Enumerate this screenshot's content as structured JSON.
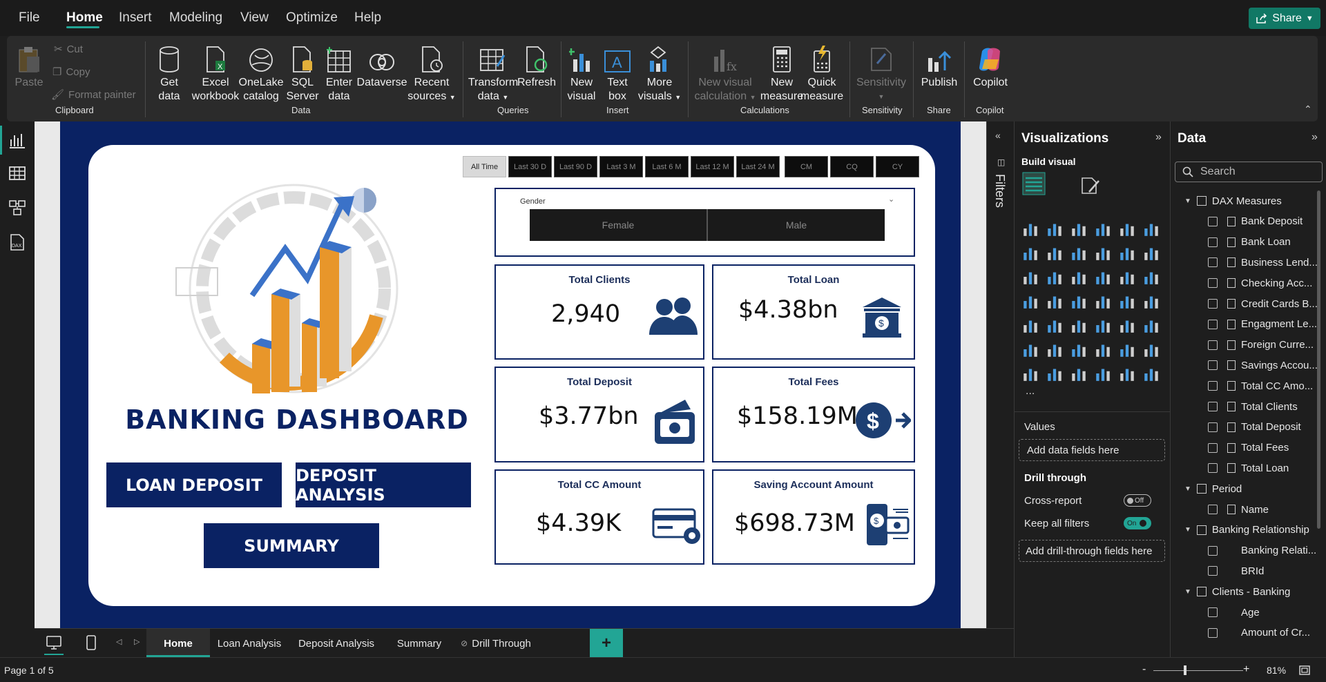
{
  "menu": {
    "file": "File",
    "home": "Home",
    "insert": "Insert",
    "modeling": "Modeling",
    "view": "View",
    "optimize": "Optimize",
    "help": "Help",
    "share": "Share"
  },
  "ribbon": {
    "paste": "Paste",
    "cut": "Cut",
    "copy": "Copy",
    "format_painter": "Format painter",
    "clipboard": "Clipboard",
    "get_data_1": "Get",
    "get_data_2": "data",
    "excel_1": "Excel",
    "excel_2": "workbook",
    "onelake_1": "OneLake",
    "onelake_2": "catalog",
    "sql_1": "SQL",
    "sql_2": "Server",
    "enter_1": "Enter",
    "enter_2": "data",
    "dataverse": "Dataverse",
    "recent_1": "Recent",
    "recent_2": "sources",
    "data_group": "Data",
    "transform_1": "Transform",
    "transform_2": "data",
    "refresh": "Refresh",
    "queries": "Queries",
    "new_visual_1": "New",
    "new_visual_2": "visual",
    "text_box_1": "Text",
    "text_box_2": "box",
    "more_visuals_1": "More",
    "more_visuals_2": "visuals",
    "insert_group": "Insert",
    "new_vis_calc_1": "New visual",
    "new_vis_calc_2": "calculation",
    "new_measure_1": "New",
    "new_measure_2": "measure",
    "quick_measure_1": "Quick",
    "quick_measure_2": "measure",
    "calculations": "Calculations",
    "sensitivity": "Sensitivity",
    "sensitivity_group": "Sensitivity",
    "publish": "Publish",
    "share_group": "Share",
    "copilot": "Copilot",
    "copilot_group": "Copilot"
  },
  "report": {
    "title": "BANKING DASHBOARD",
    "time_filters": [
      "All Time",
      "Last 30 D",
      "Last 90 D",
      "Last 3 M",
      "Last 6 M",
      "Last 12 M",
      "Last 24 M",
      "CM",
      "CQ",
      "CY"
    ],
    "gender_label": "Gender",
    "gender_options": [
      "Female",
      "Male"
    ],
    "kpis": {
      "total_clients": {
        "title": "Total Clients",
        "value": "2,940"
      },
      "total_loan": {
        "title": "Total Loan",
        "value": "$4.38bn"
      },
      "total_deposit": {
        "title": "Total Deposit",
        "value": "$3.77bn"
      },
      "total_fees": {
        "title": "Total Fees",
        "value": "$158.19M"
      },
      "total_cc": {
        "title": "Total CC Amount",
        "value": "$4.39K"
      },
      "saving_account": {
        "title": "Saving Account Amount",
        "value": "$698.73M"
      }
    },
    "buttons": {
      "loan_deposit": "LOAN DEPOSIT",
      "deposit_analysis": "DEPOSIT ANALYSIS",
      "summary": "SUMMARY"
    }
  },
  "filters_label": "Filters",
  "visualizations": {
    "title": "Visualizations",
    "build_visual": "Build visual",
    "values": "Values",
    "add_data": "Add data fields here",
    "drill_through": "Drill through",
    "cross_report": "Cross-report",
    "cross_report_state": "Off",
    "keep_filters": "Keep all filters",
    "keep_filters_state": "On",
    "add_drill": "Add drill-through fields here",
    "more": "..."
  },
  "data_pane": {
    "title": "Data",
    "search_placeholder": "Search",
    "tables": [
      {
        "name": "DAX Measures",
        "fields": [
          "Bank Deposit",
          "Bank Loan",
          "Business Lend...",
          "Checking Acc...",
          "Credit Cards B...",
          "Engagment Le...",
          "Foreign Curre...",
          "Savings Accou...",
          "Total CC Amo...",
          "Total Clients",
          "Total Deposit",
          "Total Fees",
          "Total Loan"
        ]
      },
      {
        "name": "Period",
        "fields": [
          "Name"
        ]
      },
      {
        "name": "Banking Relationship",
        "fields": [
          "Banking Relati...",
          "BRId"
        ]
      },
      {
        "name": "Clients - Banking",
        "fields": [
          "Age",
          "Amount of Cr..."
        ]
      }
    ]
  },
  "pages": [
    "Home",
    "Loan Analysis",
    "Deposit Analysis",
    "Summary",
    "Drill Through"
  ],
  "status": {
    "page": "Page 1 of 5",
    "zoom": "81%",
    "minus": "-",
    "plus": "+"
  },
  "colors": {
    "accent": "#22a595",
    "navy": "#0a2263",
    "orange": "#e8962a",
    "blue": "#3b72c8"
  }
}
